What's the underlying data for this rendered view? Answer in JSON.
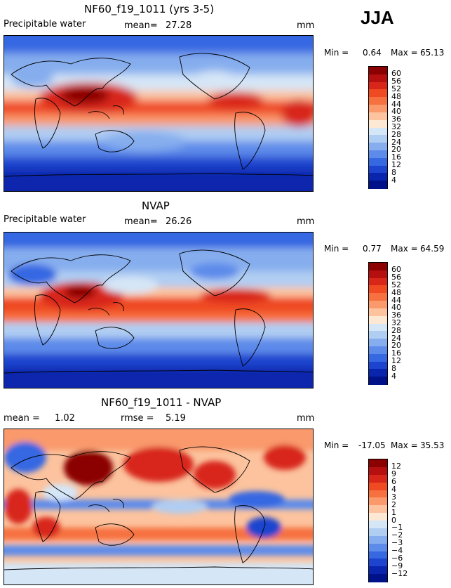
{
  "season": "JJA",
  "panels": [
    {
      "id": "model",
      "title": "NF60_f19_1011 (yrs 3-5)",
      "left_label": "Precipitable water",
      "center_label": "mean=",
      "center_value": "27.28",
      "units": "mm",
      "min_label": "Min =",
      "min_value": "0.64",
      "max_label": "Max =",
      "max_value": "65.13",
      "colorbar": {
        "ticks": [
          "60",
          "56",
          "52",
          "48",
          "44",
          "40",
          "36",
          "32",
          "28",
          "24",
          "20",
          "16",
          "12",
          "8",
          "4"
        ],
        "colors": [
          "#8b0000",
          "#b50f0f",
          "#d8261a",
          "#ef4a22",
          "#f6713f",
          "#f9996c",
          "#fcc39e",
          "#fde8d4",
          "#d5e6f7",
          "#b0cdf2",
          "#86aeee",
          "#5d8bea",
          "#3668e2",
          "#1c44cf",
          "#0a25ad",
          "#00128a"
        ]
      }
    },
    {
      "id": "obs",
      "title": "NVAP",
      "left_label": "Precipitable water",
      "center_label": "mean=",
      "center_value": "26.26",
      "units": "mm",
      "min_label": "Min =",
      "min_value": "0.77",
      "max_label": "Max =",
      "max_value": "64.59",
      "colorbar": {
        "ticks": [
          "60",
          "56",
          "52",
          "48",
          "44",
          "40",
          "36",
          "32",
          "28",
          "24",
          "20",
          "16",
          "12",
          "8",
          "4"
        ],
        "colors": [
          "#8b0000",
          "#b50f0f",
          "#d8261a",
          "#ef4a22",
          "#f6713f",
          "#f9996c",
          "#fcc39e",
          "#fde8d4",
          "#d5e6f7",
          "#b0cdf2",
          "#86aeee",
          "#5d8bea",
          "#3668e2",
          "#1c44cf",
          "#0a25ad",
          "#00128a"
        ]
      }
    },
    {
      "id": "diff",
      "title": "NF60_f19_1011 - NVAP",
      "left_label": "mean =",
      "left_value": "1.02",
      "center_label": "rmse =",
      "center_value": "5.19",
      "units": "mm",
      "min_label": "Min =",
      "min_value": "-17.05",
      "max_label": "Max =",
      "max_value": "35.53",
      "colorbar": {
        "ticks": [
          "12",
          "9",
          "6",
          "4",
          "3",
          "2",
          "1",
          "0",
          "−1",
          "−2",
          "−3",
          "−4",
          "−6",
          "−9",
          "−12"
        ],
        "colors": [
          "#8b0000",
          "#b50f0f",
          "#d8261a",
          "#ef4a22",
          "#f6713f",
          "#f9996c",
          "#fcc39e",
          "#fde8d4",
          "#d5e6f7",
          "#b0cdf2",
          "#86aeee",
          "#5d8bea",
          "#3668e2",
          "#1c44cf",
          "#0a25ad",
          "#00128a"
        ]
      }
    }
  ]
}
